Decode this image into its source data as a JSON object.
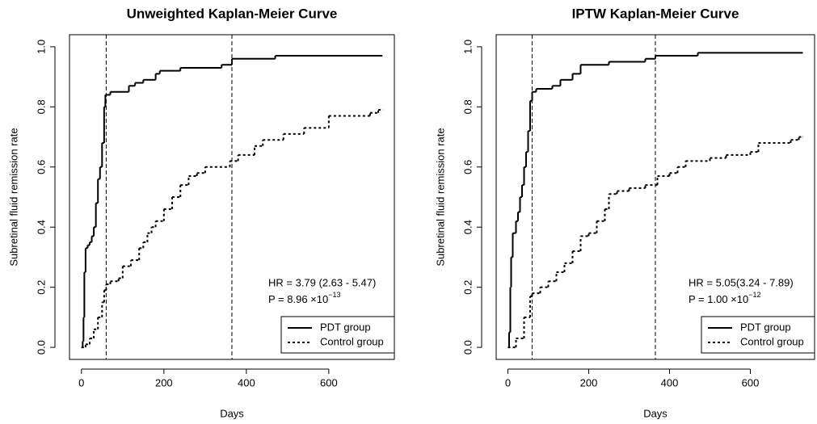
{
  "chart_data": [
    {
      "type": "step",
      "title": "Unweighted Kaplan-Meier Curve",
      "x_label": "Days",
      "y_label": "Subretinal fluid remission rate",
      "xlim": [
        -29,
        759
      ],
      "ylim": [
        -0.04,
        1.04
      ],
      "xticks": [
        0,
        200,
        400,
        600
      ],
      "yticks": [
        {
          "value": 0,
          "label": "0.0"
        },
        0.2,
        0.4,
        0.6,
        0.8,
        {
          "value": 1,
          "label": "1.0"
        }
      ],
      "vlines": [
        60,
        365
      ],
      "legend": "bottom-right",
      "annotations": {
        "hr": "HR = 3.79 (2.63 - 5.47)",
        "p_text": "P = 8.96 ×10",
        "p_exponent": "−13"
      },
      "series": [
        {
          "name": "PDT group",
          "color": "#000000",
          "dashed": false,
          "x": [
            0,
            3,
            5,
            7,
            10,
            15,
            20,
            25,
            30,
            35,
            40,
            45,
            50,
            55,
            58,
            70,
            115,
            130,
            150,
            180,
            190,
            240,
            340,
            365,
            470,
            730
          ],
          "values": [
            0,
            0.02,
            0.1,
            0.25,
            0.33,
            0.34,
            0.35,
            0.37,
            0.4,
            0.48,
            0.56,
            0.6,
            0.68,
            0.8,
            0.84,
            0.85,
            0.87,
            0.88,
            0.89,
            0.91,
            0.92,
            0.93,
            0.94,
            0.96,
            0.97,
            0.97
          ]
        },
        {
          "name": "Control group",
          "color": "#000000",
          "dashed": true,
          "x": [
            0,
            10,
            20,
            30,
            40,
            50,
            55,
            60,
            70,
            90,
            100,
            120,
            140,
            150,
            160,
            170,
            180,
            200,
            220,
            240,
            260,
            280,
            300,
            360,
            380,
            420,
            440,
            490,
            540,
            600,
            700,
            720,
            730
          ],
          "values": [
            0,
            0.01,
            0.03,
            0.06,
            0.1,
            0.15,
            0.19,
            0.21,
            0.22,
            0.23,
            0.27,
            0.29,
            0.33,
            0.35,
            0.38,
            0.4,
            0.42,
            0.46,
            0.5,
            0.54,
            0.57,
            0.58,
            0.6,
            0.62,
            0.64,
            0.67,
            0.69,
            0.71,
            0.73,
            0.77,
            0.78,
            0.79,
            0.79
          ]
        }
      ]
    },
    {
      "type": "step",
      "title": "IPTW Kaplan-Meier Curve",
      "x_label": "Days",
      "y_label": "Subretinal fluid remission rate",
      "xlim": [
        -29,
        759
      ],
      "ylim": [
        -0.04,
        1.04
      ],
      "xticks": [
        0,
        200,
        400,
        600
      ],
      "yticks": [
        {
          "value": 0,
          "label": "0.0"
        },
        0.2,
        0.4,
        0.6,
        0.8,
        {
          "value": 1,
          "label": "1.0"
        }
      ],
      "vlines": [
        60,
        365
      ],
      "legend": "bottom-right",
      "annotations": {
        "hr": "HR = 5.05(3.24 - 7.89)",
        "p_text": "P = 1.00 ×10",
        "p_exponent": "−12"
      },
      "series": [
        {
          "name": "PDT group",
          "color": "#000000",
          "dashed": false,
          "x": [
            0,
            3,
            6,
            8,
            12,
            20,
            25,
            30,
            35,
            40,
            45,
            50,
            55,
            60,
            70,
            110,
            130,
            160,
            180,
            250,
            340,
            365,
            470,
            730
          ],
          "values": [
            0,
            0.05,
            0.2,
            0.3,
            0.38,
            0.42,
            0.45,
            0.5,
            0.54,
            0.6,
            0.65,
            0.72,
            0.82,
            0.85,
            0.86,
            0.87,
            0.89,
            0.91,
            0.94,
            0.95,
            0.96,
            0.97,
            0.98,
            0.98
          ]
        },
        {
          "name": "Control group",
          "color": "#000000",
          "dashed": true,
          "x": [
            0,
            20,
            40,
            55,
            60,
            80,
            100,
            120,
            140,
            160,
            180,
            200,
            220,
            240,
            250,
            270,
            300,
            340,
            370,
            400,
            420,
            440,
            500,
            540,
            600,
            620,
            700,
            720,
            730
          ],
          "values": [
            0,
            0.03,
            0.1,
            0.17,
            0.18,
            0.2,
            0.22,
            0.25,
            0.28,
            0.32,
            0.37,
            0.38,
            0.42,
            0.46,
            0.51,
            0.52,
            0.53,
            0.54,
            0.57,
            0.58,
            0.6,
            0.62,
            0.63,
            0.64,
            0.65,
            0.68,
            0.69,
            0.7,
            0.7
          ]
        }
      ]
    }
  ]
}
